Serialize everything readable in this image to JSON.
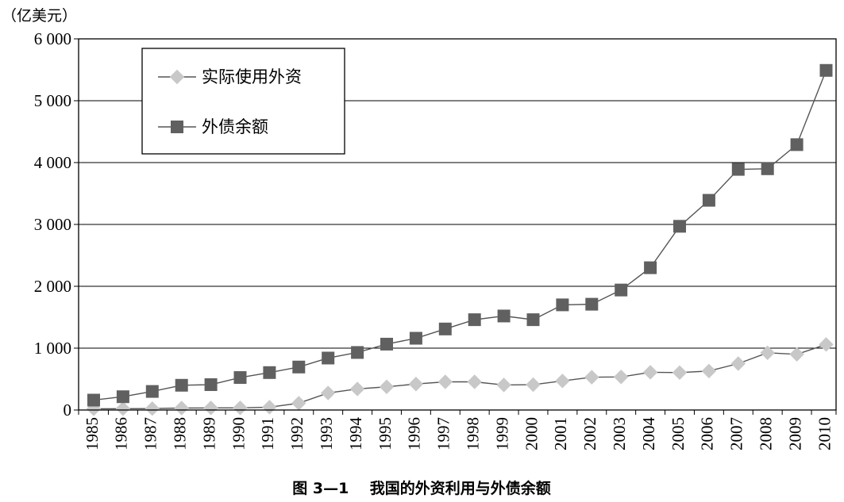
{
  "chart_data": {
    "type": "line",
    "unit_label": "（亿美元）",
    "caption": "图 3—1    我国的外资利用与外债余额",
    "categories": [
      "1985",
      "1986",
      "1987",
      "1988",
      "1989",
      "1990",
      "1991",
      "1992",
      "1993",
      "1994",
      "1995",
      "1996",
      "1997",
      "1998",
      "1999",
      "2000",
      "2001",
      "2002",
      "2003",
      "2004",
      "2005",
      "2006",
      "2007",
      "2008",
      "2009",
      "2010"
    ],
    "y_ticks": [
      0,
      1000,
      2000,
      3000,
      4000,
      5000,
      6000
    ],
    "y_tick_labels": [
      "0",
      "1 000",
      "2 000",
      "3 000",
      "4 000",
      "5 000",
      "6 000"
    ],
    "ylim": [
      0,
      6000
    ],
    "grid": "horizontal",
    "legend_position": "top-left",
    "series": [
      {
        "name": "实际使用外资",
        "marker": "diamond",
        "color": "#c8c8c8",
        "values": [
          20,
          22,
          23,
          32,
          34,
          35,
          46,
          110,
          275,
          340,
          375,
          420,
          455,
          455,
          405,
          410,
          470,
          530,
          535,
          610,
          605,
          630,
          750,
          925,
          900,
          1060
        ]
      },
      {
        "name": "外债余额",
        "marker": "square",
        "color": "#606060",
        "values": [
          160,
          215,
          300,
          400,
          410,
          525,
          605,
          695,
          840,
          930,
          1065,
          1160,
          1310,
          1460,
          1520,
          1460,
          1700,
          1710,
          1940,
          2300,
          2970,
          3390,
          3890,
          3900,
          4290,
          5490
        ]
      }
    ]
  }
}
